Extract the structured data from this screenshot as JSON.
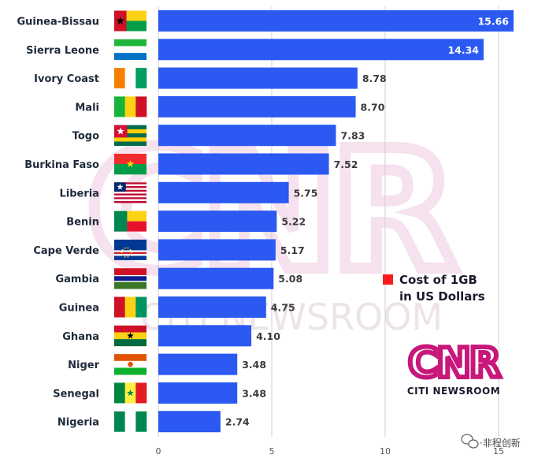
{
  "chart_data": {
    "type": "bar",
    "orientation": "horizontal",
    "categories": [
      "Guinea-Bissau",
      "Sierra Leone",
      "Ivory Coast",
      "Mali",
      "Togo",
      "Burkina Faso",
      "Liberia",
      "Benin",
      "Cape Verde",
      "Gambia",
      "Guinea",
      "Ghana",
      "Niger",
      "Senegal",
      "Nigeria"
    ],
    "values": [
      15.66,
      14.34,
      8.78,
      8.7,
      7.83,
      7.52,
      5.75,
      5.22,
      5.17,
      5.08,
      4.75,
      4.1,
      3.48,
      3.48,
      2.74
    ],
    "value_labels": [
      "15.66",
      "14.34",
      "8.78",
      "8.70",
      "7.83",
      "7.52",
      "5.75",
      "5.22",
      "5.17",
      "5.08",
      "4.75",
      "4.10",
      "3.48",
      "3.48",
      "2.74"
    ],
    "xlim": [
      0,
      16
    ],
    "xticks": [
      0,
      5,
      10,
      15
    ],
    "xtick_labels": [
      "0",
      "5",
      "10",
      "15"
    ],
    "bar_color": "#2b59f2",
    "grid": true,
    "legend": {
      "entries": [
        {
          "color": "#ff1a1a",
          "line1": "Cost of 1GB",
          "line2": "in US Dollars"
        }
      ],
      "placement": "right"
    }
  },
  "logo": {
    "mark": "CNR",
    "text": "CITI NEWSROOM",
    "color": "#c8177a"
  },
  "watermark": {
    "mark": "CNR",
    "text": "CITI NEWSROOM"
  },
  "source_tag": {
    "icon": "wechat-icon",
    "text": "·非程创新"
  },
  "flags": [
    "guinea-bissau",
    "sierra-leone",
    "ivory-coast",
    "mali",
    "togo",
    "burkina-faso",
    "liberia",
    "benin",
    "cape-verde",
    "gambia",
    "guinea",
    "ghana",
    "niger",
    "senegal",
    "nigeria"
  ]
}
